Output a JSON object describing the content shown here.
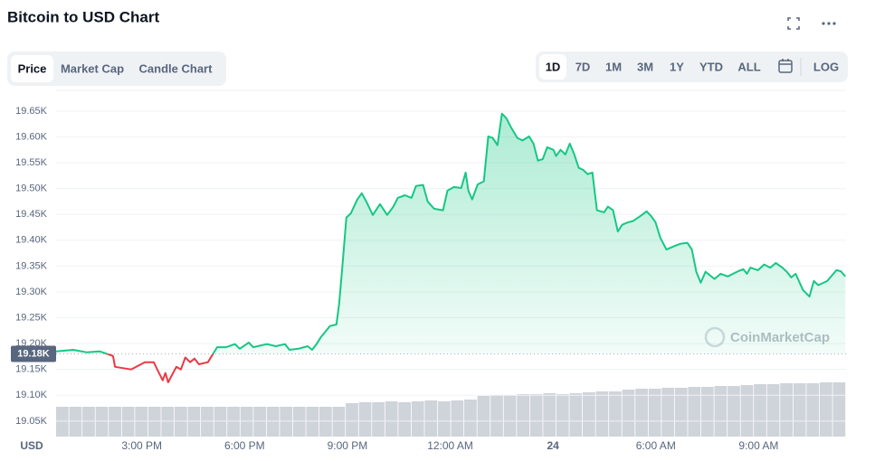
{
  "chart_data": {
    "type": "line",
    "title": "Bitcoin to USD Chart",
    "tabs": [
      "Price",
      "Market Cap",
      "Candle Chart"
    ],
    "ranges": [
      "1D",
      "7D",
      "1M",
      "3M",
      "1Y",
      "YTD",
      "ALL"
    ],
    "log_label": "LOG",
    "currency": "USD",
    "watermark": "CoinMarketCap",
    "x": [
      12.5,
      13.0,
      13.4,
      13.77,
      14.16,
      14.22,
      14.69,
      15.09,
      15.35,
      15.48,
      15.61,
      15.69,
      15.77,
      16.01,
      16.14,
      16.27,
      16.41,
      16.54,
      16.67,
      16.93,
      17.06,
      17.2,
      17.46,
      17.72,
      17.86,
      18.12,
      18.25,
      18.65,
      18.91,
      19.18,
      19.31,
      19.57,
      19.84,
      19.97,
      20.1,
      20.23,
      20.49,
      20.68,
      20.76,
      20.84,
      20.97,
      21.1,
      21.29,
      21.42,
      21.55,
      21.74,
      21.95,
      22.16,
      22.34,
      22.47,
      22.68,
      22.87,
      23.0,
      23.21,
      23.34,
      23.53,
      23.79,
      23.92,
      24.11,
      24.32,
      24.45,
      24.53,
      24.64,
      24.8,
      24.98,
      25.11,
      25.24,
      25.38,
      25.51,
      25.64,
      25.77,
      25.96,
      26.11,
      26.3,
      26.43,
      26.56,
      26.7,
      26.83,
      27.01,
      27.09,
      27.22,
      27.36,
      27.49,
      27.62,
      27.75,
      27.88,
      28.01,
      28.15,
      28.28,
      28.49,
      28.6,
      28.75,
      28.89,
      29.02,
      29.2,
      29.33,
      29.55,
      29.73,
      29.86,
      29.99,
      30.13,
      30.31,
      30.52,
      30.71,
      30.92,
      31.05,
      31.18,
      31.31,
      31.45,
      31.71,
      31.89,
      32.1,
      32.37,
      32.55,
      32.66,
      32.76,
      32.98,
      33.16,
      33.34,
      33.5,
      33.69,
      33.82,
      33.95,
      34.08,
      34.29,
      34.48,
      34.61,
      34.74,
      35.0,
      35.14,
      35.27,
      35.4,
      35.53
    ],
    "series": [
      {
        "color": "#16c784",
        "down_color": "#ea3943",
        "values": [
          19.185,
          19.188,
          19.183,
          19.185,
          19.176,
          19.155,
          19.15,
          19.164,
          19.164,
          19.146,
          19.129,
          19.143,
          19.125,
          19.155,
          19.15,
          19.173,
          19.164,
          19.171,
          19.16,
          19.164,
          19.178,
          19.193,
          19.193,
          19.199,
          19.19,
          19.202,
          19.193,
          19.199,
          19.195,
          19.199,
          19.188,
          19.19,
          19.195,
          19.188,
          19.199,
          19.213,
          19.234,
          19.237,
          19.277,
          19.339,
          19.444,
          19.452,
          19.479,
          19.491,
          19.475,
          19.449,
          19.47,
          19.449,
          19.465,
          19.482,
          19.487,
          19.482,
          19.505,
          19.507,
          19.475,
          19.461,
          19.458,
          19.496,
          19.503,
          19.501,
          19.531,
          19.496,
          19.479,
          19.508,
          19.514,
          19.601,
          19.598,
          19.584,
          19.645,
          19.636,
          19.619,
          19.598,
          19.593,
          19.601,
          19.587,
          19.554,
          19.557,
          19.58,
          19.575,
          19.563,
          19.575,
          19.566,
          19.587,
          19.566,
          19.54,
          19.536,
          19.528,
          19.531,
          19.458,
          19.454,
          19.465,
          19.458,
          19.417,
          19.43,
          19.435,
          19.437,
          19.447,
          19.456,
          19.447,
          19.435,
          19.405,
          19.382,
          19.388,
          19.393,
          19.395,
          19.382,
          19.339,
          19.318,
          19.339,
          19.325,
          19.335,
          19.33,
          19.339,
          19.344,
          19.335,
          19.347,
          19.342,
          19.353,
          19.347,
          19.356,
          19.347,
          19.339,
          19.328,
          19.335,
          19.304,
          19.291,
          19.321,
          19.313,
          19.321,
          19.332,
          19.342,
          19.34,
          19.33
        ]
      }
    ],
    "baseline": {
      "value": 19.18,
      "label": "19.18K"
    },
    "volume": {
      "color": "#cfd3da",
      "values": [
        33,
        33,
        33,
        33,
        33,
        33,
        33,
        33,
        33,
        33,
        33,
        33,
        33,
        33,
        33,
        33,
        33,
        33,
        33,
        33,
        33,
        33,
        37,
        38,
        38,
        39,
        38,
        39,
        40,
        39,
        40,
        41,
        45,
        46,
        46,
        47,
        47,
        48,
        47,
        48,
        49,
        50,
        50,
        52,
        53,
        53,
        54,
        54,
        55,
        55,
        56,
        56,
        57,
        58,
        58,
        59,
        59,
        59,
        60,
        60
      ]
    },
    "xlim": [
      12.5,
      35.55
    ],
    "xticks": [
      {
        "value": 15,
        "label": "3:00 PM"
      },
      {
        "value": 18,
        "label": "6:00 PM"
      },
      {
        "value": 21,
        "label": "9:00 PM"
      },
      {
        "value": 24,
        "label": "12:00 AM"
      },
      {
        "value": 27,
        "label": "24"
      },
      {
        "value": 30,
        "label": "6:00 AM"
      },
      {
        "value": 33,
        "label": "9:00 AM"
      }
    ],
    "ylim": [
      19.02,
      19.69
    ],
    "yticks": [
      {
        "value": 19.05,
        "label": "19.05K"
      },
      {
        "value": 19.1,
        "label": "19.10K"
      },
      {
        "value": 19.15,
        "label": "19.15K"
      },
      {
        "value": 19.2,
        "label": "19.20K"
      },
      {
        "value": 19.25,
        "label": "19.25K"
      },
      {
        "value": 19.3,
        "label": "19.30K"
      },
      {
        "value": 19.35,
        "label": "19.35K"
      },
      {
        "value": 19.4,
        "label": "19.40K"
      },
      {
        "value": 19.45,
        "label": "19.45K"
      },
      {
        "value": 19.5,
        "label": "19.50K"
      },
      {
        "value": 19.55,
        "label": "19.55K"
      },
      {
        "value": 19.6,
        "label": "19.60K"
      },
      {
        "value": 19.65,
        "label": "19.65K"
      }
    ],
    "grid": true
  }
}
